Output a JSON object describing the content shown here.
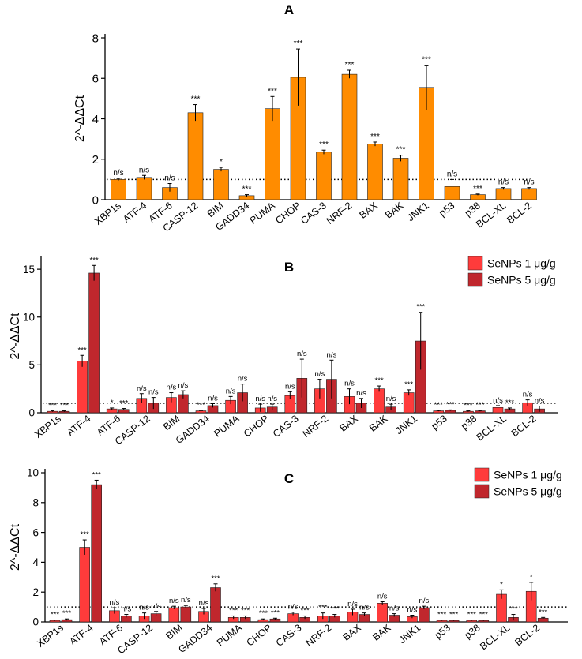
{
  "colors": {
    "orange": "#ff8c00",
    "light_red": "#ff3b3b",
    "dark_red": "#c0272d",
    "axis": "#000000"
  },
  "chart_data": [
    {
      "panel": "A",
      "type": "bar",
      "title": "A",
      "ylabel": "2^-ΔΔCt",
      "ylim": [
        0,
        8
      ],
      "yticks": [
        0,
        2,
        4,
        6,
        8
      ],
      "reference_line": 1,
      "categories": [
        "XBP1s",
        "ATF-4",
        "ATF-6",
        "CASP-12",
        "BIM",
        "GADD34",
        "PUMA",
        "CHOP",
        "CAS-3",
        "NRF-2",
        "BAX",
        "BAK",
        "JNK1",
        "p53",
        "p38",
        "BCL-XL",
        "BCL-2"
      ],
      "series": [
        {
          "name": "",
          "color": "orange",
          "values": [
            1.0,
            1.1,
            0.6,
            4.3,
            1.5,
            0.2,
            4.5,
            6.05,
            2.35,
            6.2,
            2.75,
            2.05,
            5.55,
            0.65,
            0.25,
            0.55,
            0.55
          ],
          "errors": [
            0.05,
            0.1,
            0.2,
            0.4,
            0.1,
            0.05,
            0.6,
            1.4,
            0.1,
            0.2,
            0.1,
            0.15,
            1.1,
            0.35,
            0.03,
            0.05,
            0.05
          ],
          "significance": [
            "n/s",
            "n/s",
            "n/s",
            "***",
            "*",
            "***",
            "***",
            "***",
            "***",
            "***",
            "***",
            "***",
            "***",
            "n/s",
            "***",
            "n/s",
            "n/s"
          ]
        }
      ]
    },
    {
      "panel": "B",
      "type": "bar",
      "title": "B",
      "ylabel": "2^-ΔΔCt",
      "ylim": [
        0,
        16
      ],
      "yticks": [
        0,
        5,
        10,
        15
      ],
      "reference_line": 1,
      "legend": "top-right",
      "categories": [
        "XBP1s",
        "ATF-4",
        "ATF-6",
        "CASP-12",
        "BIM",
        "GADD34",
        "PUMA",
        "CHOP",
        "CAS-3",
        "NRF-2",
        "BAX",
        "BAK",
        "JNK1",
        "p53",
        "p38",
        "BCL-XL",
        "BCL-2"
      ],
      "series": [
        {
          "name": "SeNPs 1 μg/g",
          "color": "light_red",
          "values": [
            0.15,
            5.4,
            0.4,
            1.5,
            1.6,
            0.2,
            1.3,
            0.5,
            1.8,
            2.5,
            1.7,
            2.5,
            2.1,
            0.2,
            0.15,
            0.55,
            1.05
          ],
          "errors": [
            0.05,
            0.6,
            0.1,
            0.5,
            0.5,
            0.05,
            0.4,
            0.4,
            0.4,
            1.0,
            0.8,
            0.3,
            0.3,
            0.05,
            0.05,
            0.2,
            0.3
          ],
          "significance": [
            "***",
            "***",
            "*",
            "n/s",
            "n/s",
            "***",
            "n/s",
            "n/s",
            "n/s",
            "n/s",
            "n/s",
            "***",
            "***",
            "***",
            "***",
            "n/s",
            "n/s"
          ]
        },
        {
          "name": "SeNPs 5 μg/g",
          "color": "dark_red",
          "values": [
            0.15,
            14.6,
            0.35,
            1.0,
            1.9,
            0.75,
            2.1,
            0.6,
            3.6,
            3.5,
            1.0,
            0.6,
            7.5,
            0.25,
            0.2,
            0.4,
            0.4
          ],
          "errors": [
            0.05,
            0.8,
            0.1,
            0.6,
            0.4,
            0.2,
            0.9,
            0.3,
            2.0,
            2.0,
            0.5,
            0.3,
            3.0,
            0.05,
            0.05,
            0.1,
            0.3
          ],
          "significance": [
            "***",
            "***",
            "***",
            "n/s",
            "n/s",
            "n/s",
            "n/s",
            "n/s",
            "n/s",
            "n/s",
            "n/s",
            "n/s",
            "***",
            "***",
            "***",
            "***",
            "n/s"
          ]
        }
      ]
    },
    {
      "panel": "C",
      "type": "bar",
      "title": "C",
      "ylabel": "2^-ΔΔCt",
      "ylim": [
        0,
        10
      ],
      "yticks": [
        0,
        2,
        4,
        6,
        8,
        10
      ],
      "reference_line": 1,
      "legend": "top-right",
      "categories": [
        "XBP1s",
        "ATF-4",
        "ATF-6",
        "CASP-12",
        "BIM",
        "GADD34",
        "PUMA",
        "CHOP",
        "CAS-3",
        "NRF-2",
        "BAX",
        "BAK",
        "JNK1",
        "p53",
        "p38",
        "BCL-XL",
        "BCL-2"
      ],
      "series": [
        {
          "name": "SeNPs 1 μg/g",
          "color": "light_red",
          "values": [
            0.1,
            5.0,
            0.75,
            0.4,
            0.95,
            0.7,
            0.3,
            0.15,
            0.55,
            0.4,
            0.65,
            1.25,
            0.35,
            0.1,
            0.1,
            1.85,
            2.05
          ],
          "errors": [
            0.03,
            0.5,
            0.2,
            0.2,
            0.1,
            0.2,
            0.1,
            0.05,
            0.1,
            0.2,
            0.2,
            0.1,
            0.1,
            0.03,
            0.03,
            0.3,
            0.6
          ],
          "significance": [
            "***",
            "***",
            "n/s",
            "n/s",
            "n/s",
            "n/s",
            "***",
            "***",
            "n/s",
            "***",
            "n/s",
            "n/s",
            "n/s",
            "***",
            "***",
            "*",
            "*"
          ]
        },
        {
          "name": "SeNPs 5 μg/g",
          "color": "dark_red",
          "values": [
            0.15,
            9.2,
            0.4,
            0.55,
            1.0,
            2.3,
            0.3,
            0.2,
            0.3,
            0.4,
            0.5,
            0.45,
            0.95,
            0.1,
            0.1,
            0.3,
            0.25
          ],
          "errors": [
            0.05,
            0.3,
            0.1,
            0.15,
            0.1,
            0.25,
            0.1,
            0.05,
            0.1,
            0.1,
            0.1,
            0.1,
            0.1,
            0.03,
            0.03,
            0.2,
            0.05
          ],
          "significance": [
            "***",
            "***",
            "n/s",
            "n/s",
            "n/s",
            "***",
            "***",
            "***",
            "***",
            "***",
            "n/s",
            "n/s",
            "n/s",
            "***",
            "***",
            "***",
            "***"
          ]
        }
      ]
    }
  ]
}
